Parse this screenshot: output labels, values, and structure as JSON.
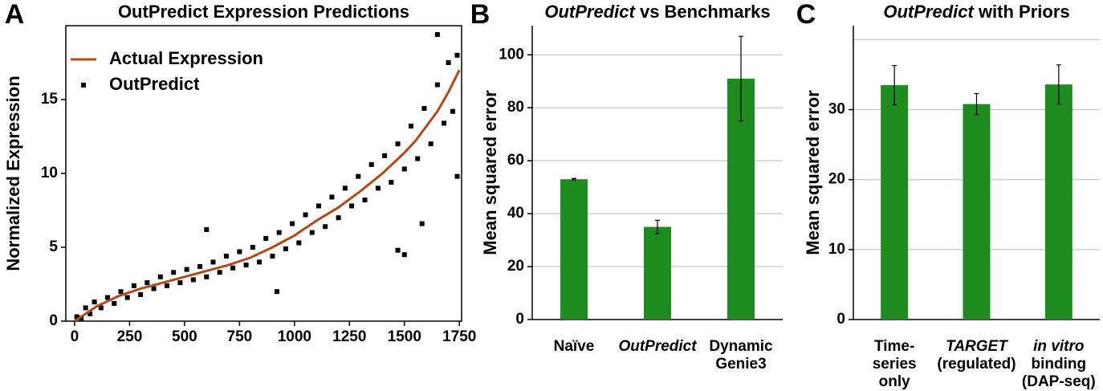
{
  "chart_data": [
    {
      "type": "scatter",
      "panel_label": "A",
      "title": [
        "OutPredict Expression Predictions"
      ],
      "title_italic": [
        false
      ],
      "y_label": "Normalized Expression",
      "xlim": [
        -40,
        1760
      ],
      "ylim": [
        0,
        20
      ],
      "xticks": [
        0,
        250,
        500,
        750,
        1000,
        1250,
        1500,
        1750
      ],
      "yticks": [
        0,
        5,
        10,
        15
      ],
      "legend": "upper left",
      "series": [
        {
          "name": "Actual Expression",
          "kind": "line",
          "color": "#b04a1a",
          "x": [
            0,
            100,
            200,
            300,
            400,
            500,
            600,
            700,
            800,
            900,
            1000,
            1100,
            1200,
            1300,
            1400,
            1500,
            1550,
            1600,
            1650,
            1700,
            1750
          ],
          "values": [
            0,
            1.0,
            1.7,
            2.2,
            2.6,
            3.0,
            3.4,
            3.8,
            4.3,
            5.0,
            5.8,
            6.8,
            7.7,
            8.8,
            10,
            11.4,
            12.2,
            13.2,
            14.2,
            15.5,
            17
          ]
        },
        {
          "name": "OutPredict",
          "kind": "points",
          "color": "#000000",
          "x": [
            10,
            30,
            50,
            70,
            90,
            120,
            150,
            180,
            210,
            240,
            270,
            300,
            330,
            360,
            390,
            420,
            450,
            480,
            510,
            540,
            570,
            600,
            630,
            660,
            690,
            720,
            750,
            780,
            810,
            840,
            870,
            900,
            930,
            960,
            990,
            1020,
            1050,
            1080,
            1110,
            1140,
            1170,
            1200,
            1230,
            1260,
            1290,
            1320,
            1350,
            1380,
            1410,
            1440,
            1470,
            1500,
            1530,
            1560,
            1590,
            1620,
            1650,
            1680,
            1700,
            1720,
            1740,
            600,
            920,
            1470,
            1500,
            1580,
            1650,
            1740
          ],
          "values": [
            0.3,
            0.2,
            0.9,
            0.5,
            1.3,
            0.9,
            1.6,
            1.2,
            2.0,
            1.6,
            2.4,
            1.8,
            2.6,
            2.2,
            3.0,
            2.4,
            3.3,
            2.6,
            3.5,
            2.8,
            3.7,
            3.0,
            4.0,
            3.3,
            4.4,
            3.6,
            4.7,
            3.8,
            5.0,
            4.0,
            5.6,
            4.4,
            6.0,
            4.9,
            6.6,
            5.3,
            7.2,
            6.0,
            7.8,
            6.4,
            8.4,
            7.0,
            9.0,
            7.8,
            9.8,
            8.2,
            10.6,
            9.0,
            11.2,
            9.4,
            12.0,
            10.3,
            13.2,
            11.0,
            14.4,
            12.0,
            16.0,
            13.4,
            17.5,
            14.2,
            18.0,
            6.2,
            2.0,
            4.8,
            4.5,
            6.6,
            19.4,
            9.8
          ]
        }
      ]
    },
    {
      "type": "bar",
      "panel_label": "B",
      "title": [
        "OutPredict",
        " vs Benchmarks"
      ],
      "title_italic": [
        true,
        false
      ],
      "y_label": "Mean squared error",
      "categories": [
        [
          "Naïve"
        ],
        [
          "OutPredict"
        ],
        [
          "Dynamic",
          "Genie3"
        ]
      ],
      "category_italic": [
        [
          false
        ],
        [
          true
        ],
        [
          false,
          false
        ]
      ],
      "values": [
        53,
        35,
        91
      ],
      "errors": [
        0.3,
        2.5,
        16
      ],
      "color": "#1e8c1e",
      "ylim": [
        0,
        111
      ],
      "yticks": [
        0,
        20,
        40,
        60,
        80,
        100
      ],
      "gridlines": [
        20,
        40,
        60,
        80,
        100
      ]
    },
    {
      "type": "bar",
      "panel_label": "C",
      "title": [
        "OutPredict",
        " with Priors"
      ],
      "title_italic": [
        true,
        false
      ],
      "y_label": "Mean squared error",
      "categories": [
        [
          "Time-",
          "series",
          "only"
        ],
        [
          "TARGET",
          "(regulated)"
        ],
        [
          "in vitro",
          "binding",
          "(DAP-seq)"
        ]
      ],
      "category_italic": [
        [
          false,
          false,
          false
        ],
        [
          true,
          false
        ],
        [
          true,
          false,
          false
        ]
      ],
      "values": [
        33.5,
        30.8,
        33.6
      ],
      "errors": [
        2.8,
        1.5,
        2.8
      ],
      "color": "#1e8c1e",
      "ylim": [
        0,
        42
      ],
      "yticks": [
        0,
        10,
        20,
        30
      ],
      "gridlines": [
        10,
        20,
        30,
        40
      ]
    }
  ]
}
